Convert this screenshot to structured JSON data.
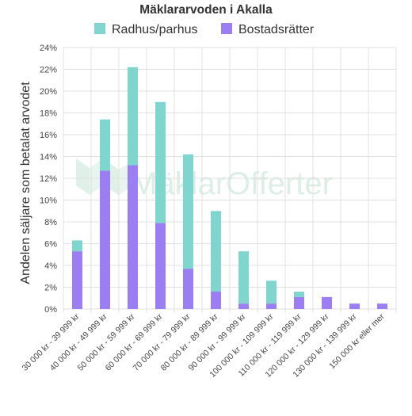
{
  "chart_data": {
    "type": "bar",
    "stacked": true,
    "title": "Mäklararvoden i Akalla",
    "ylabel": "Andelen säljare som betalat arvodet",
    "xlabel": "",
    "ylim": [
      0,
      24
    ],
    "yticks": [
      0,
      2,
      4,
      6,
      8,
      10,
      12,
      14,
      16,
      18,
      20,
      22,
      24
    ],
    "ytick_suffix": "%",
    "grid": true,
    "legend_position": "top",
    "categories": [
      "30 000 kr - 39 999 kr",
      "40 000 kr - 49 999 kr",
      "50 000 kr - 59 999 kr",
      "60 000 kr - 69 999 kr",
      "70 000 kr - 79 999 kr",
      "80 000 kr - 89 999 kr",
      "90 000 kr - 99 999 kr",
      "100 000 kr - 109 999 kr",
      "110 000 kr - 119 999 kr",
      "120 000 kr - 129 999 kr",
      "130 000 kr - 139 999 kr",
      "150 000 kr eller mer"
    ],
    "series": [
      {
        "name": "Bostadsrätter",
        "color": "#9b7ef4",
        "values": [
          5.3,
          12.7,
          13.2,
          7.9,
          3.7,
          1.6,
          0.5,
          0.5,
          1.1,
          1.1,
          0.5,
          0.5
        ]
      },
      {
        "name": "Radhus/parhus",
        "color": "#7ed6cf",
        "values": [
          1.0,
          4.7,
          9.0,
          11.1,
          10.5,
          7.4,
          4.8,
          2.1,
          0.5,
          0,
          0,
          0
        ]
      }
    ],
    "legend_order": [
      "Radhus/parhus",
      "Bostadsrätter"
    ]
  },
  "watermark": {
    "text_a": "Mäklar",
    "text_b": "Offerter",
    "color": "#dcefe6"
  }
}
